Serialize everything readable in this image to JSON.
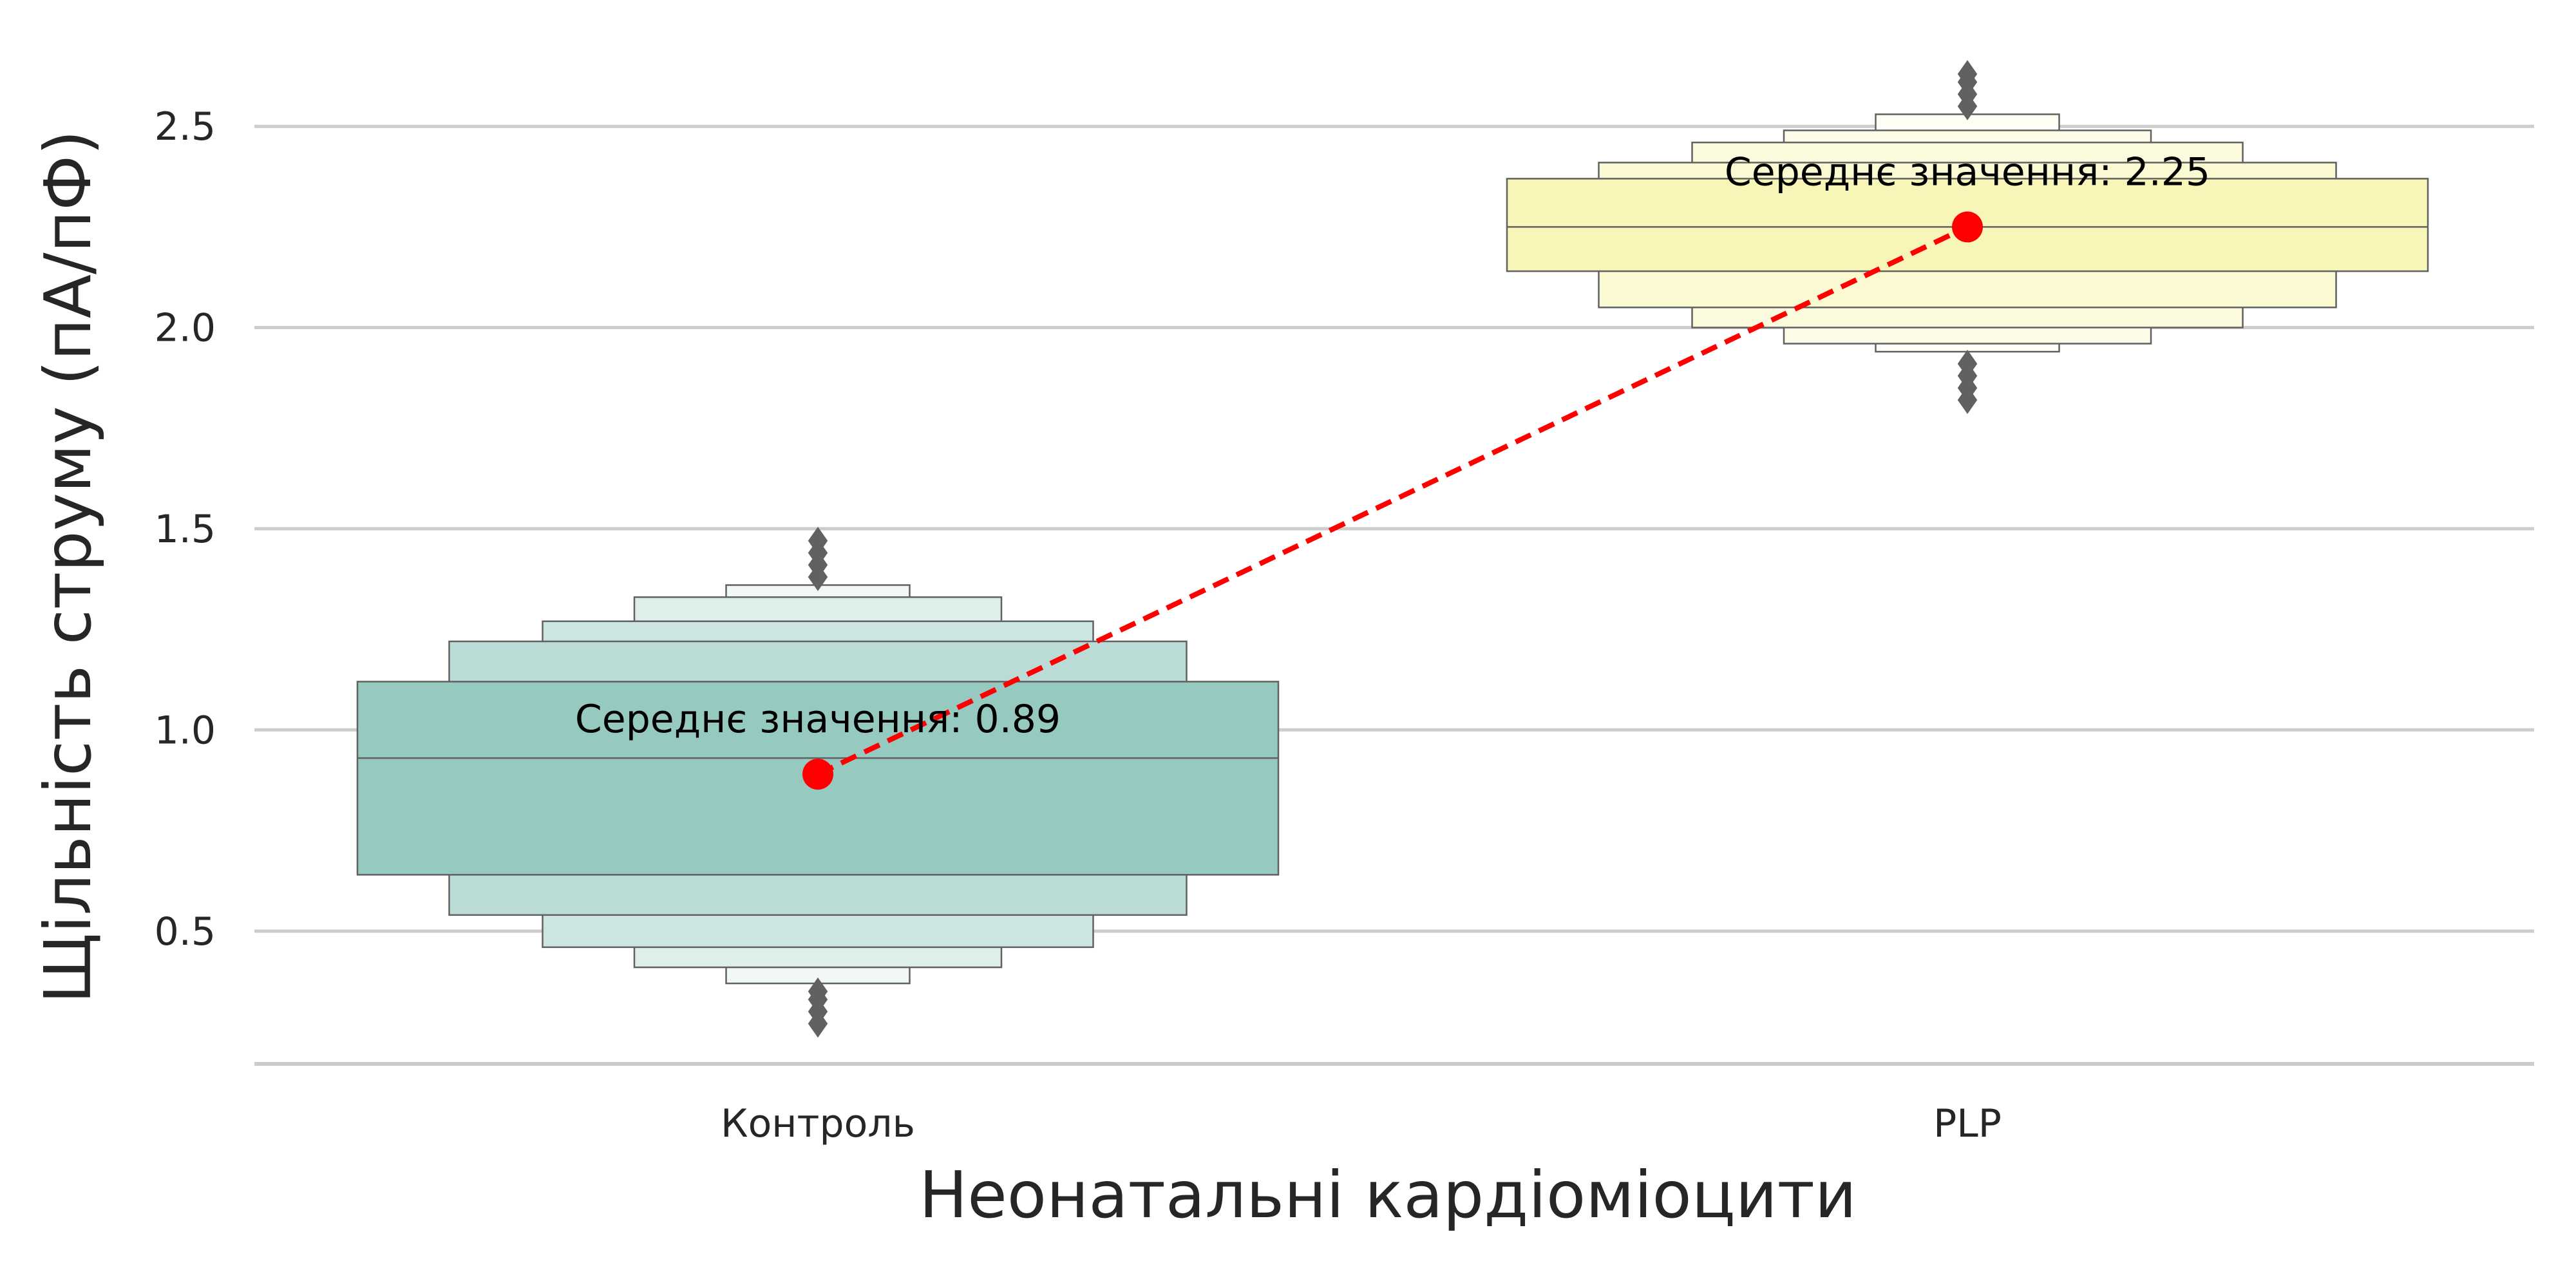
{
  "chart_data": {
    "type": "boxen",
    "title": "",
    "xlabel": "Неонатальні кардіоміоцити",
    "ylabel": "Щільність струму (пА/пФ)",
    "categories": [
      "Контроль",
      "PLP"
    ],
    "ylim": [
      0.17,
      2.75
    ],
    "yticks": [
      0.5,
      1.0,
      1.5,
      2.0,
      2.5
    ],
    "ytick_labels": [
      "0.5",
      "1.0",
      "1.5",
      "2.0",
      "2.5"
    ],
    "grid": "horizontal",
    "series": [
      {
        "category": "Контроль",
        "color": "#96c9c0",
        "median": 0.93,
        "mean": 0.89,
        "annotation": "Середнє значення: 0.89",
        "boxes": [
          [
            0.64,
            1.12
          ],
          [
            0.54,
            1.22
          ],
          [
            0.46,
            1.27
          ],
          [
            0.41,
            1.33
          ],
          [
            0.37,
            1.36
          ]
        ],
        "outliers": [
          0.27,
          0.3,
          0.33,
          0.35,
          1.38,
          1.41,
          1.44,
          1.47
        ]
      },
      {
        "category": "PLP",
        "color": "#f7f5b8",
        "median": 2.25,
        "mean": 2.25,
        "annotation": "Середнє значення: 2.25",
        "boxes": [
          [
            2.14,
            2.37
          ],
          [
            2.05,
            2.41
          ],
          [
            2.0,
            2.46
          ],
          [
            1.96,
            2.49
          ],
          [
            1.94,
            2.53
          ]
        ],
        "outliers": [
          1.82,
          1.85,
          1.88,
          1.91,
          2.55,
          2.58,
          2.61,
          2.63
        ]
      }
    ],
    "mean_line": {
      "values": [
        0.89,
        2.25
      ],
      "color": "#ff0000",
      "style": "dashed"
    }
  }
}
